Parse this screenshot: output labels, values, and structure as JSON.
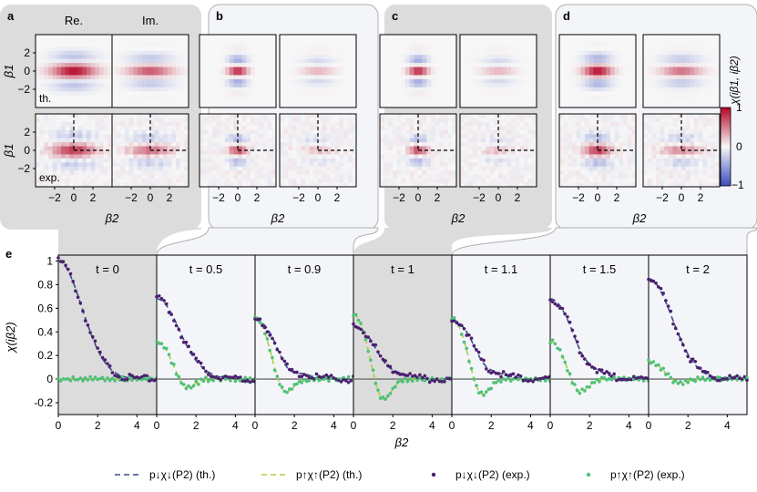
{
  "figure": {
    "top_panels": [
      {
        "letter": "a",
        "col_labels": [
          "Re.",
          "Im."
        ],
        "row_labels": [
          "th.",
          "exp."
        ],
        "background": "#dcdcdc"
      },
      {
        "letter": "b",
        "col_labels": [],
        "row_labels": [],
        "background": "#f3f5f8"
      },
      {
        "letter": "c",
        "col_labels": [],
        "row_labels": [],
        "background": "#dcdcdc"
      },
      {
        "letter": "d",
        "col_labels": [],
        "row_labels": [],
        "background": "#f3f5f8"
      }
    ],
    "top_axes": {
      "ylabel": "β1",
      "xlabel": "β2",
      "yticks": [
        "2",
        "0",
        "−2"
      ],
      "xticks": [
        "−2",
        "0",
        "2"
      ]
    },
    "colorbar": {
      "label": "χ(iβ1, iβ2)",
      "ticks": [
        "1",
        "0",
        "−1"
      ],
      "colors": {
        "low": "#3b4cc0",
        "mid": "#f7f7f7",
        "high": "#b40426"
      }
    },
    "bottom": {
      "letter": "e",
      "ylabel": "χ(iβ2)",
      "xlabel": "β2"
    },
    "legend": [
      {
        "label": "p↓χ↓(P2) (th.)",
        "style": "dashed",
        "color": "#3d4a8a"
      },
      {
        "label": "p↑χ↑(P2) (th.)",
        "style": "dashed",
        "color": "#a8d040"
      },
      {
        "label": "p↓χ↓(P2) (exp.)",
        "style": "dots",
        "color": "#4a1f6e"
      },
      {
        "label": "p↑χ↑(P2) (exp.)",
        "style": "dots",
        "color": "#4fc07a"
      }
    ]
  },
  "chart_data": {
    "type": "line",
    "title": "",
    "xlabel": "β2",
    "ylabel": "χ(iβ2)",
    "xlim": [
      0,
      5
    ],
    "ylim": [
      -0.3,
      1.05
    ],
    "xticks": [
      0,
      2,
      4
    ],
    "yticks": [
      1,
      0.8,
      0.6,
      0.4,
      0.2,
      0,
      -0.2
    ],
    "ytick_labels": [
      "1",
      "0.8",
      "0.6",
      "0.4",
      "0.2",
      "0",
      "-0.2"
    ],
    "panel_backgrounds": [
      "#dcdcdc",
      "#f3f5f8",
      "#f3f5f8",
      "#dcdcdc",
      "#f3f5f8",
      "#f3f5f8",
      "#f3f5f8"
    ],
    "panels": [
      {
        "label": "t = 0",
        "down_amp": 1.0,
        "up_amp": 0.0,
        "down_dip": 0.0,
        "up_dip": 0.0
      },
      {
        "label": "t = 0.5",
        "down_amp": 0.68,
        "up_amp": 0.32,
        "down_dip": -0.02,
        "up_dip": -0.11
      },
      {
        "label": "t = 0.9",
        "down_amp": 0.5,
        "up_amp": 0.52,
        "down_dip": -0.1,
        "up_dip": -0.18
      },
      {
        "label": "t = 1",
        "down_amp": 0.45,
        "up_amp": 0.55,
        "down_dip": -0.05,
        "up_dip": -0.25
      },
      {
        "label": "t = 1.1",
        "down_amp": 0.5,
        "up_amp": 0.52,
        "down_dip": -0.07,
        "up_dip": -0.2
      },
      {
        "label": "t = 1.5",
        "down_amp": 0.68,
        "up_amp": 0.32,
        "down_dip": -0.06,
        "up_dip": -0.15
      },
      {
        "label": "t = 2",
        "down_amp": 0.85,
        "up_amp": 0.15,
        "down_dip": 0.0,
        "up_dip": -0.05
      }
    ],
    "series": [
      {
        "name": "p↓χ↓(P2) (th.)",
        "style": "dashed"
      },
      {
        "name": "p↑χ↑(P2) (th.)",
        "style": "dashed"
      },
      {
        "name": "p↓χ↓(P2) (exp.)",
        "style": "dots"
      },
      {
        "name": "p↑χ↑(P2) (exp.)",
        "style": "dots"
      }
    ]
  }
}
